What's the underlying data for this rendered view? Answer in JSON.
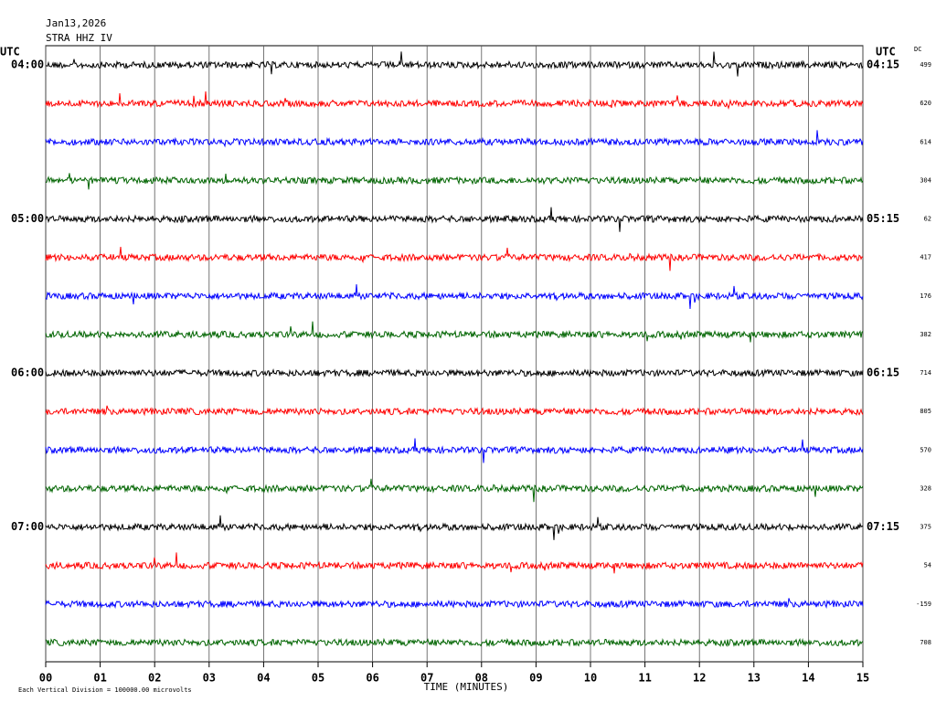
{
  "chart_data": {
    "type": "helicorder",
    "date": "Jan13,2026",
    "station": "STRA HHZ IV",
    "left_header": "UTC",
    "right_header": "UTC",
    "dc_header": "DC",
    "x_label": "TIME (MINUTES)",
    "footnote": "Each Vertical Division = 100000.00 microvolts",
    "xlim": [
      0,
      15
    ],
    "xticks": [
      {
        "value": 0,
        "label": "00"
      },
      {
        "value": 1,
        "label": "01"
      },
      {
        "value": 2,
        "label": "02"
      },
      {
        "value": 3,
        "label": "03"
      },
      {
        "value": 4,
        "label": "04"
      },
      {
        "value": 5,
        "label": "05"
      },
      {
        "value": 6,
        "label": "06"
      },
      {
        "value": 7,
        "label": "07"
      },
      {
        "value": 8,
        "label": "08"
      },
      {
        "value": 9,
        "label": "09"
      },
      10,
      11,
      12,
      13,
      14,
      15
    ],
    "grid": true,
    "rows": [
      {
        "left": "04:00",
        "right": "04:15",
        "dc": 499,
        "color": "#000000"
      },
      {
        "left": null,
        "right": null,
        "dc": 620,
        "color": "#ff0000"
      },
      {
        "left": null,
        "right": null,
        "dc": 614,
        "color": "#0000ff"
      },
      {
        "left": null,
        "right": null,
        "dc": 304,
        "color": "#006400"
      },
      {
        "left": "05:00",
        "right": "05:15",
        "dc": 62,
        "color": "#000000"
      },
      {
        "left": null,
        "right": null,
        "dc": 417,
        "color": "#ff0000"
      },
      {
        "left": null,
        "right": null,
        "dc": 176,
        "color": "#0000ff"
      },
      {
        "left": null,
        "right": null,
        "dc": 382,
        "color": "#006400"
      },
      {
        "left": "06:00",
        "right": "06:15",
        "dc": 714,
        "color": "#000000"
      },
      {
        "left": null,
        "right": null,
        "dc": 805,
        "color": "#ff0000"
      },
      {
        "left": null,
        "right": null,
        "dc": 570,
        "color": "#0000ff"
      },
      {
        "left": null,
        "right": null,
        "dc": 328,
        "color": "#006400"
      },
      {
        "left": "07:00",
        "right": "07:15",
        "dc": 375,
        "color": "#000000"
      },
      {
        "left": null,
        "right": null,
        "dc": 54,
        "color": "#ff0000"
      },
      {
        "left": null,
        "right": null,
        "dc": -159,
        "color": "#0000ff"
      },
      {
        "left": null,
        "right": null,
        "dc": 708,
        "color": "#006400"
      }
    ]
  }
}
